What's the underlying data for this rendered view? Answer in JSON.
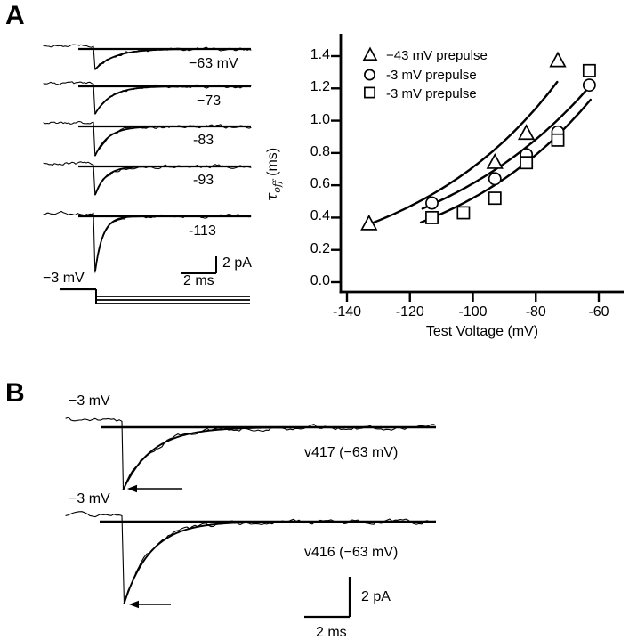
{
  "panel_a": {
    "label": "A",
    "traces": {
      "voltage_labels": [
        "−63 mV",
        "−73",
        "-83",
        "-93",
        "-113"
      ],
      "holding_label": "−3 mV"
    },
    "scale_bar": {
      "current": "2 pA",
      "time": "2 ms"
    }
  },
  "panel_b": {
    "label": "B",
    "traces": [
      {
        "step_label": "−3 mV",
        "annotation": "v417 (−63 mV)"
      },
      {
        "step_label": "−3 mV",
        "annotation": "v416 (−63 mV)"
      }
    ],
    "scale_bar": {
      "current": "2 pA",
      "time": "2 ms"
    }
  },
  "chart_data": {
    "type": "scatter",
    "title": "",
    "xlabel": "Test Voltage (mV)",
    "ylabel": "τoff (ms)",
    "ylabel_parts": {
      "symbol": "τ",
      "subscript": "off",
      "units": " (ms)"
    },
    "xlim": [
      -148,
      -52
    ],
    "ylim": [
      -0.06,
      1.54
    ],
    "xticks": [
      -140,
      -120,
      -100,
      -80,
      -60
    ],
    "yticks": [
      0.0,
      0.2,
      0.4,
      0.6,
      0.8,
      1.0,
      1.2,
      1.4
    ],
    "grid": false,
    "legend_position": "top-left",
    "series": [
      {
        "name": "−43 mV prepulse",
        "marker": "triangle",
        "points": [
          [
            -133,
            0.36
          ],
          [
            -93,
            0.74
          ],
          [
            -83,
            0.92
          ],
          [
            -73,
            1.37
          ]
        ],
        "fit": {
          "x1": -133.5,
          "y1": 0.355,
          "x2": -73.2,
          "y2": 1.24
        }
      },
      {
        "name": "-3 mV prepulse",
        "marker": "circle",
        "points": [
          [
            -113,
            0.49
          ],
          [
            -93,
            0.64
          ],
          [
            -83,
            0.79
          ],
          [
            -73,
            0.93
          ],
          [
            -63,
            1.22
          ]
        ],
        "fit": {
          "x1": -116.0,
          "y1": 0.455,
          "x2": -63.2,
          "y2": 1.205
        }
      },
      {
        "name": "-3 mV prepulse",
        "marker": "square",
        "points": [
          [
            -113,
            0.4
          ],
          [
            -103,
            0.43
          ],
          [
            -93,
            0.52
          ],
          [
            -83,
            0.74
          ],
          [
            -73,
            0.88
          ],
          [
            -63,
            1.31
          ]
        ],
        "fit": {
          "x1": -116.5,
          "y1": 0.37,
          "x2": -62.6,
          "y2": 1.13
        }
      }
    ]
  }
}
